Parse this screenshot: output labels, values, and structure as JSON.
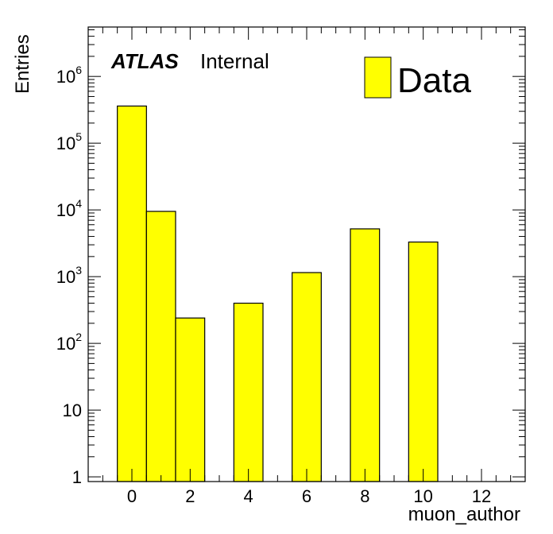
{
  "chart_data": {
    "type": "bar",
    "histogram": true,
    "x": [
      0,
      1,
      2,
      4,
      6,
      8,
      10
    ],
    "values": [
      360000,
      9500,
      240,
      400,
      1150,
      5200,
      3300
    ],
    "bin_width": 1,
    "xlim": [
      -1.5,
      13.5
    ],
    "ylim": [
      0.85,
      5500000
    ],
    "yscale": "log",
    "xticks": [
      0,
      2,
      4,
      6,
      8,
      10,
      12
    ],
    "yticks": [
      {
        "value": 1,
        "base": "1",
        "exp": ""
      },
      {
        "value": 10,
        "base": "10",
        "exp": ""
      },
      {
        "value": 100,
        "base": "10",
        "exp": "2"
      },
      {
        "value": 1000,
        "base": "10",
        "exp": "3"
      },
      {
        "value": 10000,
        "base": "10",
        "exp": "4"
      },
      {
        "value": 100000,
        "base": "10",
        "exp": "5"
      },
      {
        "value": 1000000,
        "base": "10",
        "exp": "6"
      }
    ],
    "xlabel": "muon_author",
    "ylabel": "Entries",
    "legend": {
      "position": "top-right",
      "entries": [
        "Data"
      ]
    },
    "label": {
      "bold": "ATLAS",
      "normal": "Internal"
    },
    "fill_color": "#ffff00",
    "grid": false
  }
}
